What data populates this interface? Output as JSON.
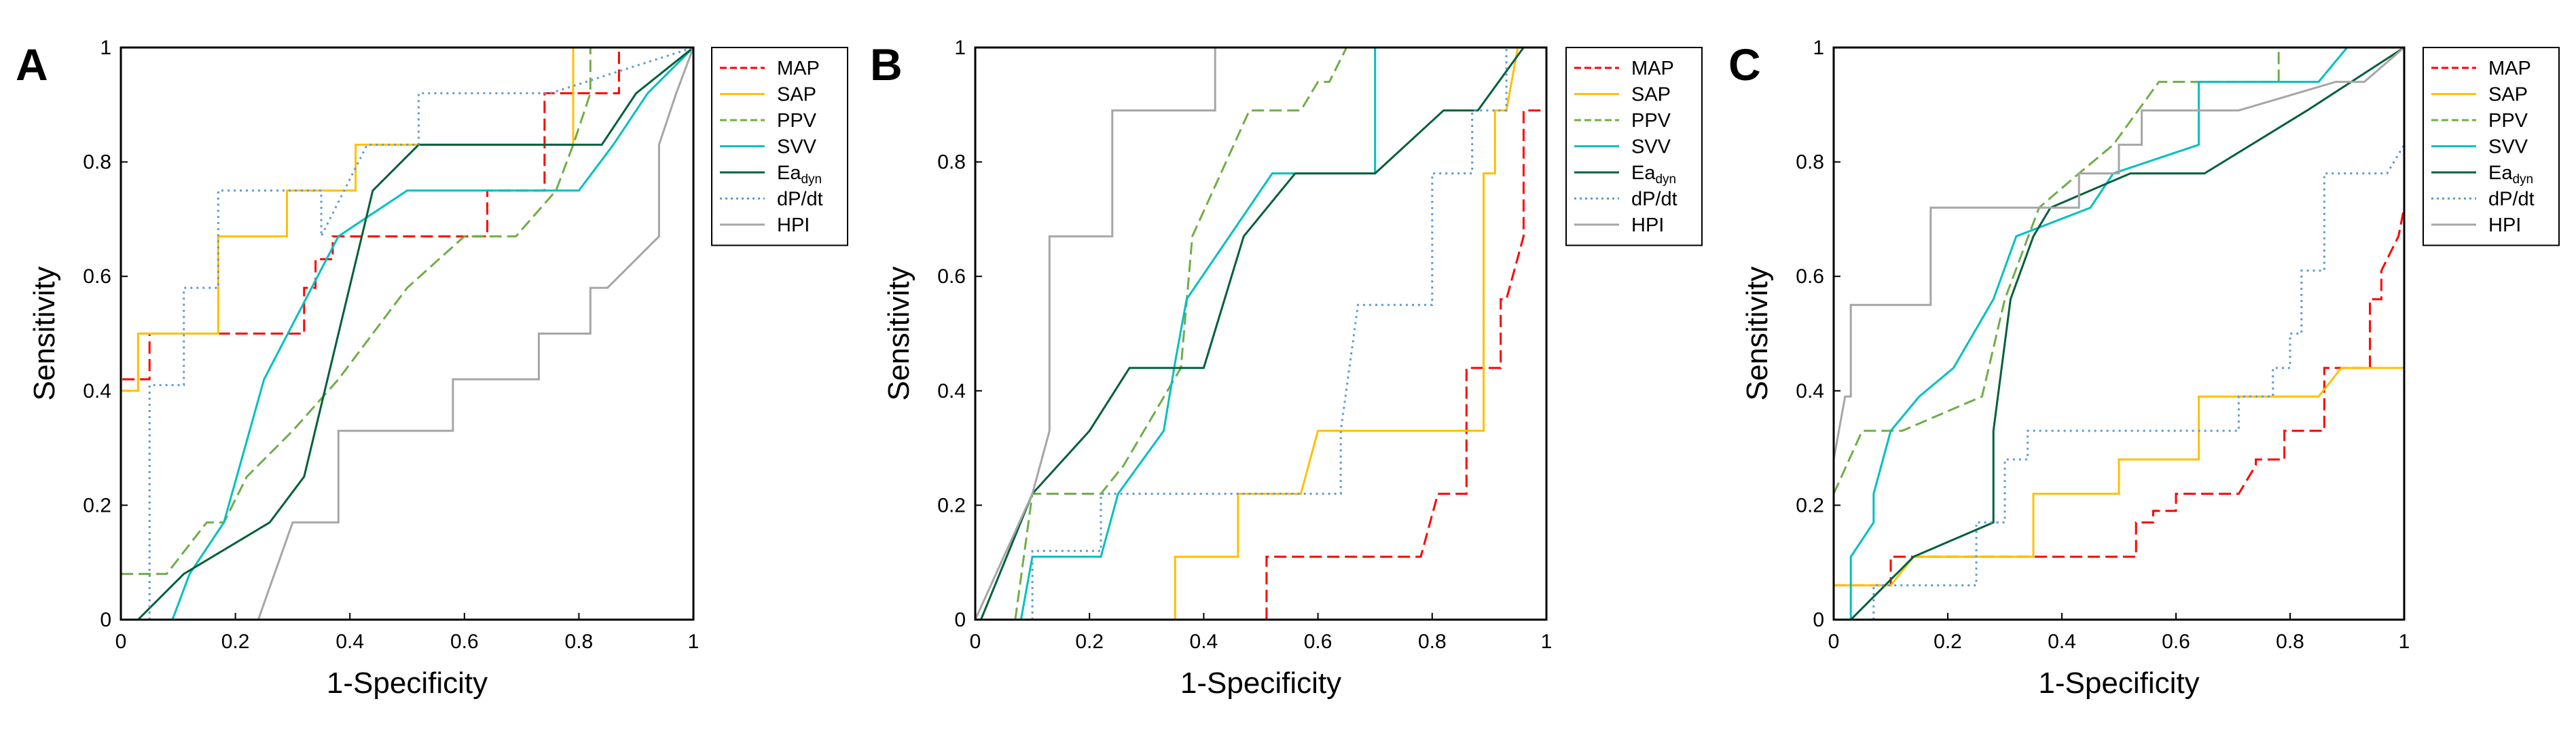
{
  "chart_data": [
    {
      "type": "line",
      "panel": "A",
      "xlabel": "1-Specificity",
      "ylabel": "Sensitivity",
      "xlim": [
        0,
        1
      ],
      "ylim": [
        0,
        1
      ],
      "xticks": [
        "0",
        "0.2",
        "0.4",
        "0.6",
        "0.8",
        "1"
      ],
      "yticks": [
        "0",
        "0.2",
        "0.4",
        "0.6",
        "0.8",
        "1"
      ],
      "legend_position": "right",
      "series": [
        {
          "key": "MAP",
          "label": "MAP",
          "color": "#ff0000",
          "dash": "dashed",
          "x": [
            0,
            0,
            0.05,
            0.05,
            0.32,
            0.32,
            0.34,
            0.34,
            0.37,
            0.37,
            0.64,
            0.64,
            0.74,
            0.74,
            0.87,
            0.87,
            0.89,
            0.89,
            1
          ],
          "y": [
            0.33,
            0.42,
            0.42,
            0.5,
            0.5,
            0.58,
            0.58,
            0.63,
            0.63,
            0.67,
            0.67,
            0.75,
            0.75,
            0.92,
            0.92,
            1,
            1,
            1,
            1
          ]
        },
        {
          "key": "SAP",
          "label": "SAP",
          "color": "#ffc000",
          "dash": "solid",
          "x": [
            0,
            0,
            0.03,
            0.03,
            0.17,
            0.17,
            0.29,
            0.29,
            0.41,
            0.41,
            0.74,
            0.74,
            0.79,
            0.79,
            1
          ],
          "y": [
            0.33,
            0.4,
            0.4,
            0.5,
            0.5,
            0.67,
            0.67,
            0.75,
            0.75,
            0.83,
            0.83,
            0.83,
            0.83,
            1,
            1
          ]
        },
        {
          "key": "PPV",
          "label": "PPV",
          "color": "#70ad47",
          "dash": "dashed",
          "x": [
            0,
            0.08,
            0.15,
            0.18,
            0.22,
            0.3,
            0.38,
            0.5,
            0.6,
            0.69,
            0.76,
            0.79,
            0.82,
            0.82,
            0.86,
            1
          ],
          "y": [
            0.08,
            0.08,
            0.17,
            0.17,
            0.25,
            0.33,
            0.42,
            0.58,
            0.67,
            0.67,
            0.75,
            0.83,
            0.92,
            1,
            1,
            1
          ]
        },
        {
          "key": "SVV",
          "label": "SVV",
          "color": "#00c0c0",
          "dash": "solid",
          "x": [
            0.09,
            0.12,
            0.12,
            0.18,
            0.25,
            0.38,
            0.5,
            0.58,
            0.79,
            0.8,
            0.86,
            0.92,
            1
          ],
          "y": [
            0,
            0.08,
            0.08,
            0.17,
            0.42,
            0.67,
            0.75,
            0.75,
            0.75,
            0.75,
            0.83,
            0.92,
            1
          ]
        },
        {
          "key": "Eadyn",
          "label": "Ea",
          "subscript": "dyn",
          "color": "#00603a",
          "dash": "solid",
          "x": [
            0.03,
            0.11,
            0.26,
            0.32,
            0.44,
            0.52,
            0.53,
            0.76,
            0.84,
            0.9,
            1
          ],
          "y": [
            0,
            0.08,
            0.17,
            0.25,
            0.75,
            0.83,
            0.83,
            0.83,
            0.83,
            0.92,
            1
          ]
        },
        {
          "key": "dPdt",
          "label": "dP/dt",
          "color": "#5b9bd5",
          "dash": "dotted",
          "x": [
            0.05,
            0.05,
            0.11,
            0.11,
            0.17,
            0.17,
            0.24,
            0.35,
            0.35,
            0.43,
            0.52,
            0.52,
            0.68,
            0.75,
            1
          ],
          "y": [
            0,
            0.41,
            0.41,
            0.58,
            0.58,
            0.75,
            0.75,
            0.75,
            0.67,
            0.83,
            0.83,
            0.92,
            0.92,
            0.92,
            1
          ]
        },
        {
          "key": "HPI",
          "label": "HPI",
          "color": "#a6a6a6",
          "dash": "solid",
          "x": [
            0.24,
            0.3,
            0.38,
            0.38,
            0.58,
            0.58,
            0.73,
            0.73,
            0.82,
            0.82,
            0.85,
            0.94,
            0.94,
            0.97,
            1
          ],
          "y": [
            0,
            0.17,
            0.17,
            0.33,
            0.33,
            0.42,
            0.42,
            0.5,
            0.5,
            0.58,
            0.58,
            0.67,
            0.83,
            0.92,
            1
          ]
        }
      ]
    },
    {
      "type": "line",
      "panel": "B",
      "xlabel": "1-Specificity",
      "ylabel": "Sensitivity",
      "xlim": [
        0,
        1
      ],
      "ylim": [
        0,
        1
      ],
      "xticks": [
        "0",
        "0.2",
        "0.4",
        "0.6",
        "0.8",
        "1"
      ],
      "yticks": [
        "0",
        "0.2",
        "0.4",
        "0.6",
        "0.8",
        "1"
      ],
      "legend_position": "right",
      "series": [
        {
          "key": "MAP",
          "label": "MAP",
          "color": "#ff0000",
          "dash": "dashed",
          "x": [
            0.51,
            0.51,
            0.78,
            0.81,
            0.81,
            0.86,
            0.86,
            0.88,
            0.88,
            0.92,
            0.92,
            0.93,
            0.96,
            0.96,
            1
          ],
          "y": [
            0,
            0.11,
            0.11,
            0.22,
            0.22,
            0.22,
            0.44,
            0.44,
            0.44,
            0.44,
            0.56,
            0.56,
            0.67,
            0.89,
            0.89
          ]
        },
        {
          "key": "SAP",
          "label": "SAP",
          "color": "#ffc000",
          "dash": "solid",
          "x": [
            0.35,
            0.35,
            0.46,
            0.46,
            0.57,
            0.6,
            0.89,
            0.89,
            0.91,
            0.91,
            0.93,
            0.95,
            1
          ],
          "y": [
            0,
            0.11,
            0.11,
            0.22,
            0.22,
            0.33,
            0.33,
            0.78,
            0.78,
            0.89,
            0.89,
            1,
            1
          ]
        },
        {
          "key": "PPV",
          "label": "PPV",
          "color": "#70ad47",
          "dash": "dashed",
          "x": [
            0.07,
            0.1,
            0.14,
            0.22,
            0.26,
            0.36,
            0.38,
            0.48,
            0.57,
            0.6,
            0.62,
            0.65,
            0.68,
            1
          ],
          "y": [
            0,
            0.22,
            0.22,
            0.22,
            0.27,
            0.44,
            0.67,
            0.89,
            0.89,
            0.94,
            0.94,
            1,
            1,
            1
          ]
        },
        {
          "key": "SVV",
          "label": "SVV",
          "color": "#00c0c0",
          "dash": "solid",
          "x": [
            0.08,
            0.1,
            0.22,
            0.22,
            0.25,
            0.33,
            0.35,
            0.37,
            0.52,
            0.63,
            0.7,
            0.7,
            1
          ],
          "y": [
            0,
            0.11,
            0.11,
            0.11,
            0.22,
            0.33,
            0.45,
            0.56,
            0.78,
            0.78,
            0.78,
            1,
            1
          ]
        },
        {
          "key": "Eadyn",
          "label": "Ea",
          "subscript": "dyn",
          "color": "#00603a",
          "dash": "solid",
          "x": [
            0.01,
            0.1,
            0.2,
            0.27,
            0.4,
            0.47,
            0.56,
            0.7,
            0.82,
            0.88,
            0.96
          ],
          "y": [
            0,
            0.22,
            0.33,
            0.44,
            0.44,
            0.67,
            0.78,
            0.78,
            0.89,
            0.89,
            1
          ]
        },
        {
          "key": "dPdt",
          "label": "dP/dt",
          "color": "#5b9bd5",
          "dash": "dotted",
          "x": [
            0.1,
            0.1,
            0.22,
            0.22,
            0.33,
            0.47,
            0.55,
            0.64,
            0.64,
            0.67,
            0.8,
            0.8,
            0.87,
            0.87,
            0.9,
            0.93,
            0.93,
            1
          ],
          "y": [
            0,
            0.12,
            0.12,
            0.22,
            0.22,
            0.22,
            0.22,
            0.22,
            0.33,
            0.55,
            0.55,
            0.78,
            0.78,
            0.89,
            0.89,
            0.89,
            1,
            1
          ]
        },
        {
          "key": "HPI",
          "label": "HPI",
          "color": "#a6a6a6",
          "dash": "solid",
          "x": [
            0,
            0.05,
            0.1,
            0.13,
            0.13,
            0.24,
            0.24,
            0.34,
            0.34,
            0.42,
            0.42,
            1
          ],
          "y": [
            0,
            0.11,
            0.22,
            0.33,
            0.67,
            0.67,
            0.89,
            0.89,
            0.89,
            0.89,
            1,
            1
          ]
        }
      ]
    },
    {
      "type": "line",
      "panel": "C",
      "xlabel": "1-Specificity",
      "ylabel": "Sensitivity",
      "xlim": [
        0,
        1
      ],
      "ylim": [
        0,
        1
      ],
      "xticks": [
        "0",
        "0.2",
        "0.4",
        "0.6",
        "0.8",
        "1"
      ],
      "yticks": [
        "0",
        "0.2",
        "0.4",
        "0.6",
        "0.8",
        "1"
      ],
      "legend_position": "right",
      "series": [
        {
          "key": "MAP",
          "label": "MAP",
          "color": "#ff0000",
          "dash": "dashed",
          "x": [
            0,
            0.1,
            0.1,
            0.53,
            0.53,
            0.56,
            0.56,
            0.6,
            0.6,
            0.71,
            0.74,
            0.74,
            0.79,
            0.79,
            0.86,
            0.86,
            0.94,
            0.94,
            0.96,
            0.96,
            0.99,
            1
          ],
          "y": [
            0.06,
            0.06,
            0.11,
            0.11,
            0.17,
            0.17,
            0.19,
            0.19,
            0.22,
            0.22,
            0.27,
            0.28,
            0.28,
            0.33,
            0.33,
            0.44,
            0.44,
            0.56,
            0.56,
            0.61,
            0.67,
            0.72
          ]
        },
        {
          "key": "SAP",
          "label": "SAP",
          "color": "#ffc000",
          "dash": "solid",
          "x": [
            0,
            0.1,
            0.14,
            0.35,
            0.35,
            0.44,
            0.44,
            0.5,
            0.5,
            0.64,
            0.64,
            0.85,
            0.89,
            1
          ],
          "y": [
            0.06,
            0.06,
            0.11,
            0.11,
            0.22,
            0.22,
            0.22,
            0.22,
            0.28,
            0.28,
            0.39,
            0.39,
            0.44,
            0.44
          ]
        },
        {
          "key": "PPV",
          "label": "PPV",
          "color": "#70ad47",
          "dash": "dashed",
          "x": [
            0,
            0.05,
            0.12,
            0.26,
            0.3,
            0.36,
            0.43,
            0.49,
            0.57,
            0.7,
            0.77,
            0.78,
            0.78,
            1
          ],
          "y": [
            0.22,
            0.33,
            0.33,
            0.39,
            0.56,
            0.72,
            0.78,
            0.83,
            0.94,
            0.94,
            0.94,
            0.94,
            1,
            1
          ]
        },
        {
          "key": "SVV",
          "label": "SVV",
          "color": "#00c0c0",
          "dash": "solid",
          "x": [
            0.03,
            0.03,
            0.07,
            0.07,
            0.1,
            0.15,
            0.21,
            0.28,
            0.32,
            0.45,
            0.49,
            0.64,
            0.64,
            0.85,
            0.9,
            1
          ],
          "y": [
            0,
            0.11,
            0.17,
            0.22,
            0.33,
            0.39,
            0.44,
            0.56,
            0.67,
            0.72,
            0.78,
            0.83,
            0.94,
            0.94,
            1,
            1
          ]
        },
        {
          "key": "Eadyn",
          "label": "Ea",
          "subscript": "dyn",
          "color": "#00603a",
          "dash": "solid",
          "x": [
            0.03,
            0.14,
            0.28,
            0.28,
            0.31,
            0.35,
            0.38,
            0.52,
            0.58,
            0.65,
            0.83,
            1
          ],
          "y": [
            0,
            0.11,
            0.17,
            0.33,
            0.56,
            0.67,
            0.72,
            0.78,
            0.78,
            0.78,
            0.89,
            1
          ]
        },
        {
          "key": "dPdt",
          "label": "dP/dt",
          "color": "#5b9bd5",
          "dash": "dotted",
          "x": [
            0.07,
            0.07,
            0.25,
            0.25,
            0.3,
            0.3,
            0.34,
            0.34,
            0.71,
            0.71,
            0.77,
            0.77,
            0.8,
            0.8,
            0.82,
            0.82,
            0.86,
            0.86,
            0.97,
            1
          ],
          "y": [
            0,
            0.06,
            0.06,
            0.17,
            0.17,
            0.28,
            0.28,
            0.33,
            0.33,
            0.39,
            0.39,
            0.44,
            0.44,
            0.5,
            0.5,
            0.61,
            0.61,
            0.78,
            0.78,
            0.83
          ]
        },
        {
          "key": "HPI",
          "label": "HPI",
          "color": "#a6a6a6",
          "dash": "solid",
          "x": [
            0,
            0.02,
            0.03,
            0.03,
            0.17,
            0.17,
            0.35,
            0.35,
            0.43,
            0.43,
            0.5,
            0.5,
            0.54,
            0.54,
            0.71,
            0.88,
            0.93,
            1
          ],
          "y": [
            0.28,
            0.39,
            0.39,
            0.55,
            0.55,
            0.72,
            0.72,
            0.72,
            0.72,
            0.78,
            0.78,
            0.83,
            0.83,
            0.89,
            0.89,
            0.94,
            0.94,
            1
          ]
        }
      ]
    }
  ]
}
